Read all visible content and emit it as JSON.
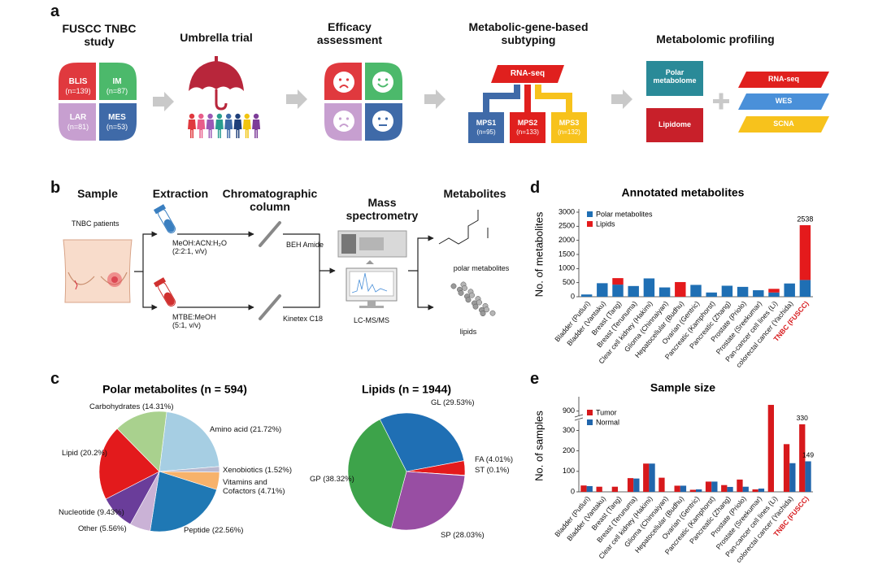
{
  "panels": {
    "labels": [
      "a",
      "b",
      "c",
      "d",
      "e"
    ],
    "a": {
      "study": "FUSCC TNBC study",
      "subtypes": [
        {
          "name": "BLIS",
          "n": "(n=139)"
        },
        {
          "name": "IM",
          "n": "(n=87)"
        },
        {
          "name": "LAR",
          "n": "(n=81)"
        },
        {
          "name": "MES",
          "n": "(n=53)"
        }
      ],
      "trial": "Umbrella trial",
      "efficacy": "Efficacy assessment",
      "subtyping": "Metabolic-gene-based subtyping",
      "rna": "RNA-seq",
      "mps": [
        {
          "name": "MPS1",
          "n": "(n=95)"
        },
        {
          "name": "MPS2",
          "n": "(n=133)"
        },
        {
          "name": "MPS3",
          "n": "(n=132)"
        }
      ],
      "profiling": "Metabolomic profiling",
      "polar": "Polar metabolome",
      "lipidome": "Lipidome",
      "omics": [
        "RNA-seq",
        "WES",
        "SCNA"
      ]
    },
    "b": {
      "headers": [
        "Sample",
        "Extraction",
        "Chromatographic column",
        "Mass spectrometry",
        "Metabolites"
      ],
      "patients": "TNBC patients",
      "solvent1": "MeOH:ACN:H₂O (2:2:1, v/v)",
      "solvent2": "MTBE:MeOH (5:1, v/v)",
      "column1": "BEH Amide",
      "column2": "Kinetex C18",
      "ms": "LC-MS/MS",
      "out1": "polar metabolites",
      "out2": "lipids"
    }
  },
  "chart_data": [
    {
      "type": "pie",
      "title": "Polar metabolites (n = 594)",
      "labels": [
        "Amino acid (21.72%)",
        "Xenobiotics (1.52%)",
        "Vitamins and Cofactors (4.71%)",
        "Peptide (22.56%)",
        "Other (5.56%)",
        "Nucleotide (9.43%)",
        "Lipid (20.2%)",
        "Carbohydrates (14.31%)"
      ],
      "values": [
        21.72,
        1.52,
        4.71,
        22.56,
        5.56,
        9.43,
        20.2,
        14.31
      ],
      "colors": [
        "#a6cee3",
        "#b9b9d0",
        "#f7b26b",
        "#1f78b4",
        "#cab2d6",
        "#6a3d9a",
        "#e31a1c",
        "#a9d18e"
      ]
    },
    {
      "type": "pie",
      "title": "Lipids (n = 1944)",
      "labels": [
        "GL (29.53%)",
        "FA (4.01%)",
        "ST (0.1%)",
        "SP (28.03%)",
        "GP (38.32%)"
      ],
      "values": [
        29.53,
        4.01,
        0.1,
        28.03,
        38.32
      ],
      "colors": [
        "#1f6fb4",
        "#e41a1c",
        "#4daf4a",
        "#984ea3",
        "#3da34a"
      ]
    },
    {
      "type": "bar",
      "stacked": true,
      "title": "Annotated metabolites",
      "y_label": "No. of metabolites",
      "categories": [
        "Bladder (Putluri)",
        "Bladder (Vantaku)",
        "Breast (Tang)",
        "Breast (Terunuma)",
        "Clear cell kidney (Hakimi)",
        "Glioma (Chinnaiyan)",
        "Hepatocellular (Budhu)",
        "Ovarian (Gentric)",
        "Pancreatic (Kamphorst)",
        "Pancreatic (Zhang)",
        "Prostate (Priolo)",
        "Prostate (Sreekumar)",
        "Pan-cancer cell lines (Li)",
        "colorectal cancer (Yachida)",
        "TNBC (FUSCC)"
      ],
      "series": [
        {
          "name": "Polar metabolites",
          "color": "#1f6fb4",
          "values": [
            80,
            480,
            430,
            380,
            650,
            330,
            null,
            420,
            150,
            390,
            350,
            230,
            150,
            470,
            594
          ]
        },
        {
          "name": "Lipids",
          "color": "#e41a1c",
          "values": [
            null,
            null,
            230,
            null,
            null,
            null,
            520,
            null,
            null,
            null,
            null,
            null,
            130,
            null,
            1944
          ]
        }
      ],
      "total_label": "2538",
      "ylim": [
        0,
        3000
      ],
      "yticks": [
        0,
        500,
        1000,
        1500,
        2000,
        2500,
        3000
      ],
      "legend": "upper left"
    },
    {
      "type": "bar",
      "stacked": false,
      "title": "Sample size",
      "y_label": "No. of samples",
      "categories": [
        "Bladder (Putluri)",
        "Bladder (Vantaku)",
        "Breast (Tang)",
        "Breast (Terunuma)",
        "Clear cell kidney (Hakimi)",
        "Glioma (Chinnaiyan)",
        "Hepatocellular (Budhu)",
        "Ovarian (Gentric)",
        "Pancreatic (Kamphorst)",
        "Pancreatic (Zhang)",
        "Prostate (Priolo)",
        "Prostate (Sreekumar)",
        "Pan-cancer cell lines (Li)",
        "colorectal cancer (Yachida)",
        "TNBC (FUSCC)"
      ],
      "series": [
        {
          "name": "Tumor",
          "color": "#d7191c",
          "values": [
            31,
            25,
            25,
            67,
            138,
            69,
            30,
            10,
            50,
            33,
            60,
            12,
            928,
            233,
            330
          ],
          "value_labels": [
            null,
            null,
            null,
            null,
            null,
            null,
            null,
            null,
            null,
            null,
            null,
            null,
            null,
            null,
            "330"
          ]
        },
        {
          "name": "Normal",
          "color": "#2166ac",
          "values": [
            28,
            null,
            null,
            65,
            138,
            null,
            30,
            12,
            50,
            24,
            25,
            16,
            null,
            140,
            149
          ],
          "value_labels": [
            null,
            null,
            null,
            null,
            null,
            null,
            null,
            null,
            null,
            null,
            null,
            null,
            null,
            null,
            "149"
          ]
        }
      ],
      "ylim": [
        0,
        950
      ],
      "ybreak": [
        350,
        880
      ],
      "yticks": [
        0,
        100,
        200,
        300,
        900
      ],
      "legend": "upper left"
    }
  ]
}
